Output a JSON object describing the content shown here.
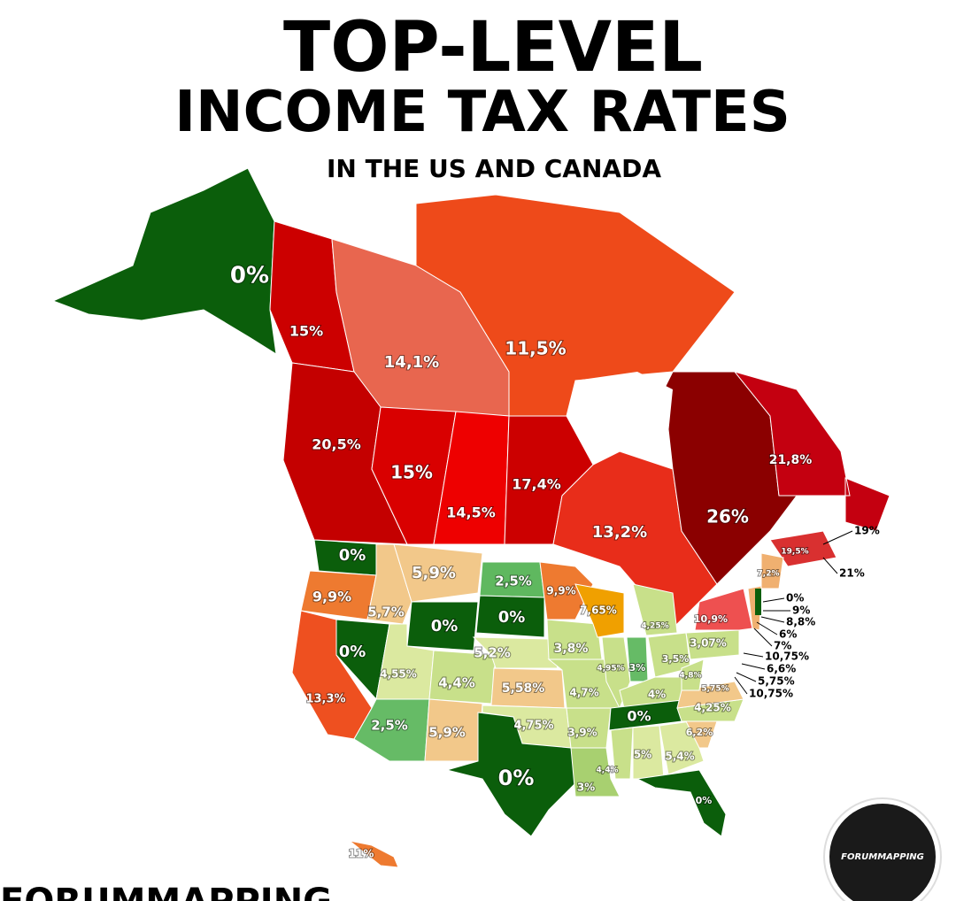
{
  "title": {
    "line1": "TOP-LEVEL",
    "line2": "INCOME TAX RATES",
    "subtitle": "IN THE US AND CANADA"
  },
  "regions": [
    {
      "label": "0%",
      "color": "#0b5e0b"
    },
    {
      "label": "15%",
      "color": "#cc0000"
    },
    {
      "label": "14,1%",
      "color": "#e8664f"
    },
    {
      "label": "11,5%",
      "color": "#ee4a1a"
    },
    {
      "label": "20,5%",
      "color": "#c40000"
    },
    {
      "label": "15%",
      "color": "#d90000"
    },
    {
      "label": "14,5%",
      "color": "#ee0000"
    },
    {
      "label": "17,4%",
      "color": "#cc0000"
    },
    {
      "label": "13,2%",
      "color": "#e82d1a"
    },
    {
      "label": "26%",
      "color": "#8b0000"
    },
    {
      "label": "21,8%",
      "color": "#c40010"
    },
    {
      "label": "19,5%",
      "color": "#d93030"
    },
    {
      "label": "0%",
      "color": "#0b5e0b"
    },
    {
      "label": "9,9%",
      "color": "#ee7a30"
    },
    {
      "label": "13,3%",
      "color": "#ee5020"
    },
    {
      "label": "0%",
      "color": "#0b5e0b"
    },
    {
      "label": "5,7%",
      "color": "#f2c88a"
    },
    {
      "label": "5,9%",
      "color": "#f2c88a"
    },
    {
      "label": "0%",
      "color": "#0b5e0b"
    },
    {
      "label": "4,55%",
      "color": "#dbe9a0"
    },
    {
      "label": "4,4%",
      "color": "#c8e08a"
    },
    {
      "label": "2,5%",
      "color": "#66bb66"
    },
    {
      "label": "5,9%",
      "color": "#f2c88a"
    },
    {
      "label": "2,5%",
      "color": "#5fb85f"
    },
    {
      "label": "0%",
      "color": "#0b5e0b"
    },
    {
      "label": "5,2%",
      "color": "#dbe9a0"
    },
    {
      "label": "5,58%",
      "color": "#f2c88a"
    },
    {
      "label": "4,75%",
      "color": "#dbe9a0"
    },
    {
      "label": "0%",
      "color": "#0b5e0b"
    },
    {
      "label": "9,9%",
      "color": "#ee7a30"
    },
    {
      "label": "3,8%",
      "color": "#c8e08a"
    },
    {
      "label": "4,7%",
      "color": "#c8e08a"
    },
    {
      "label": "3,9%",
      "color": "#c8e08a"
    },
    {
      "label": "3%",
      "color": "#a8d070"
    },
    {
      "label": "7,65%",
      "color": "#f0a000"
    },
    {
      "label": "4,95%",
      "color": "#c8e08a"
    },
    {
      "label": "3%",
      "color": "#66bb66"
    },
    {
      "label": "4,25%",
      "color": "#c8e08a"
    },
    {
      "label": "3,5%",
      "color": "#c8e08a"
    },
    {
      "label": "4%",
      "color": "#c8e08a"
    },
    {
      "label": "0%",
      "color": "#0b5e0b"
    },
    {
      "label": "4,4%",
      "color": "#c8e08a"
    },
    {
      "label": "5%",
      "color": "#dbe9a0"
    },
    {
      "label": "5,4%",
      "color": "#dbe9a0"
    },
    {
      "label": "0%",
      "color": "#0b5e0b"
    },
    {
      "label": "6,2%",
      "color": "#f2c88a"
    },
    {
      "label": "4,25%",
      "color": "#c8e08a"
    },
    {
      "label": "5,75%",
      "color": "#f2c88a"
    },
    {
      "label": "4,8%",
      "color": "#c8e08a"
    },
    {
      "label": "3,07%",
      "color": "#c8e08a"
    },
    {
      "label": "10,9%",
      "color": "#ee5050"
    },
    {
      "label": "7,2%",
      "color": "#f0b070"
    },
    {
      "label": "11%",
      "color": "#ee7a30"
    }
  ],
  "callouts": [
    {
      "label": "19%"
    },
    {
      "label": "21%"
    },
    {
      "label": "0%"
    },
    {
      "label": "9%"
    },
    {
      "label": "8,8%"
    },
    {
      "label": "6%"
    },
    {
      "label": "7%"
    },
    {
      "label": "10,75%"
    },
    {
      "label": "6,6%"
    },
    {
      "label": "5,75%"
    },
    {
      "label": "10,75%"
    }
  ],
  "footer": {
    "watermark": "FORUMMAPPING",
    "logo": "FORUMMAPPING"
  }
}
